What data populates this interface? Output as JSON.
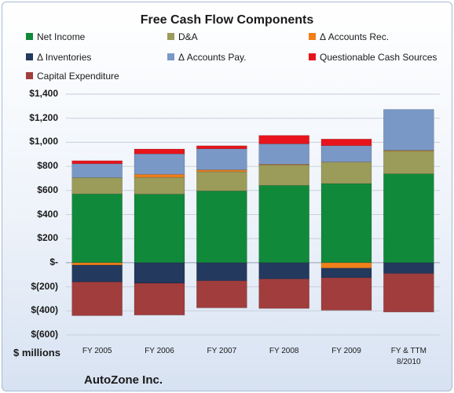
{
  "chart_data": {
    "type": "bar",
    "stacked": true,
    "title": "Free Cash Flow Components",
    "ylabel": "$ millions",
    "ylim": [
      -600,
      1400
    ],
    "yticks": [
      {
        "value": 1400,
        "label": "$1,400"
      },
      {
        "value": 1200,
        "label": "$1,200"
      },
      {
        "value": 1000,
        "label": "$1,000"
      },
      {
        "value": 800,
        "label": "$800"
      },
      {
        "value": 600,
        "label": "$600"
      },
      {
        "value": 400,
        "label": "$400"
      },
      {
        "value": 200,
        "label": "$200"
      },
      {
        "value": 0,
        "label": "$-"
      },
      {
        "value": -200,
        "label": "$(200)"
      },
      {
        "value": -400,
        "label": "$(400)"
      },
      {
        "value": -600,
        "label": "$(600)"
      }
    ],
    "categories": [
      "FY 2005",
      "FY 2006",
      "FY 2007",
      "FY 2008",
      "FY 2009",
      "FY & TTM 8/2010"
    ],
    "grid": true,
    "legend": "top",
    "series": [
      {
        "name": "Net Income",
        "color": "#108a3a",
        "values": [
          571,
          569,
          596,
          642,
          657,
          738
        ]
      },
      {
        "name": "D&A",
        "color": "#9b9b5a",
        "values": [
          136,
          140,
          160,
          170,
          180,
          190
        ]
      },
      {
        "name": "Δ Accounts Rec.",
        "color": "#f07f1a",
        "values": [
          -20,
          25,
          15,
          5,
          -45,
          5
        ]
      },
      {
        "name": "Δ Inventories",
        "color": "#23395d",
        "values": [
          -140,
          -170,
          -150,
          -135,
          -80,
          -90
        ]
      },
      {
        "name": "Δ Accounts Pay.",
        "color": "#7a98c6",
        "values": [
          115,
          170,
          175,
          170,
          135,
          340
        ]
      },
      {
        "name": "Questionable Cash Sources",
        "color": "#e8141b",
        "values": [
          25,
          40,
          25,
          70,
          55,
          0
        ]
      },
      {
        "name": "Capital Expenditure",
        "color": "#a13d3d",
        "values": [
          -280,
          -265,
          -225,
          -245,
          -270,
          -320
        ]
      }
    ],
    "footer": "AutoZone Inc."
  }
}
